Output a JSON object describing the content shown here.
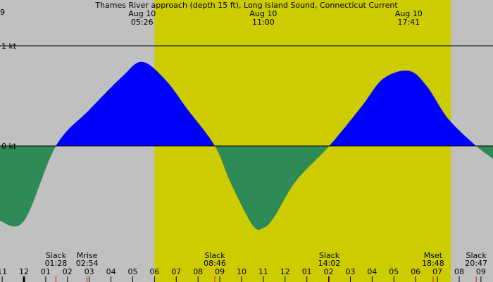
{
  "chart_data": {
    "type": "area",
    "title": "Thames River approach (depth 15 ft), Long Island Sound, Connecticut Current",
    "y_axis": {
      "unit": "kt",
      "ticks": [
        {
          "value": 1,
          "label": "1 kt"
        },
        {
          "value": 0,
          "label": "0 kt"
        }
      ]
    },
    "colors": {
      "background": "#c0c0c0",
      "daylight": "#cccc00",
      "flood": "#0000ff",
      "ebb": "#2e8b57",
      "gridline": "#000000",
      "text": "#000000",
      "tick_mark_red": "#ff0000"
    },
    "daylight_hours": [
      6.0,
      19.62
    ],
    "series": [
      {
        "x_hours": [
          0,
          1.47,
          3.0,
          4.5,
          5.43,
          6.5,
          7.5,
          8.77,
          9.5,
          10.5,
          11.0,
          11.5,
          12.5,
          14.03,
          15.5,
          16.5,
          17.68,
          18.5,
          19.5,
          20.78,
          21.5,
          22.5
        ],
        "y_kt": [
          -0.75,
          0.0,
          0.36,
          0.69,
          0.84,
          0.66,
          0.37,
          0.0,
          -0.37,
          -0.79,
          -0.82,
          -0.71,
          -0.35,
          0.0,
          0.39,
          0.67,
          0.75,
          0.6,
          0.27,
          0.0,
          -0.12,
          -0.29
        ]
      }
    ],
    "top_labels": [
      {
        "hour": 5.43,
        "date": "Aug 10",
        "time": "05:26"
      },
      {
        "hour": 11.0,
        "date": "Aug 10",
        "time": "11:00"
      },
      {
        "hour": 17.68,
        "date": "Aug 10",
        "time": "17:41"
      }
    ],
    "top_edge_label": {
      "hour": -0.05,
      "text": "9"
    },
    "bottom_events": [
      {
        "hour": 1.47,
        "name": "Slack",
        "time": "01:28"
      },
      {
        "hour": 2.9,
        "name": "Mrise",
        "time": "02:54"
      },
      {
        "hour": 8.77,
        "name": "Slack",
        "time": "08:46"
      },
      {
        "hour": 14.03,
        "name": "Slack",
        "time": "14:02"
      },
      {
        "hour": 18.8,
        "name": "Mset",
        "time": "18:48"
      },
      {
        "hour": 20.78,
        "name": "Slack",
        "time": "20:47"
      }
    ],
    "hour_ticks": [
      {
        "hour": -1,
        "label": "11"
      },
      {
        "hour": 0,
        "label": "12"
      },
      {
        "hour": 1,
        "label": "01"
      },
      {
        "hour": 2,
        "label": "02"
      },
      {
        "hour": 3,
        "label": "03"
      },
      {
        "hour": 4,
        "label": "04"
      },
      {
        "hour": 5,
        "label": "05"
      },
      {
        "hour": 6,
        "label": "06"
      },
      {
        "hour": 7,
        "label": "07"
      },
      {
        "hour": 8,
        "label": "08"
      },
      {
        "hour": 9,
        "label": "09"
      },
      {
        "hour": 10,
        "label": "10"
      },
      {
        "hour": 11,
        "label": "11"
      },
      {
        "hour": 12,
        "label": "12"
      },
      {
        "hour": 13,
        "label": "01"
      },
      {
        "hour": 14,
        "label": "02"
      },
      {
        "hour": 15,
        "label": "03"
      },
      {
        "hour": 16,
        "label": "04"
      },
      {
        "hour": 17,
        "label": "05"
      },
      {
        "hour": 18,
        "label": "06"
      },
      {
        "hour": 19,
        "label": "07"
      },
      {
        "hour": 20,
        "label": "08"
      },
      {
        "hour": 21,
        "label": "09"
      }
    ],
    "midnight_hour": 0,
    "red_marks_hours": [
      1.47,
      2.9,
      8.77,
      14.03,
      18.8,
      20.78
    ],
    "marker_symbol": "+",
    "marker_point": {
      "hour": 3.9,
      "y_kt": 0.53
    }
  }
}
